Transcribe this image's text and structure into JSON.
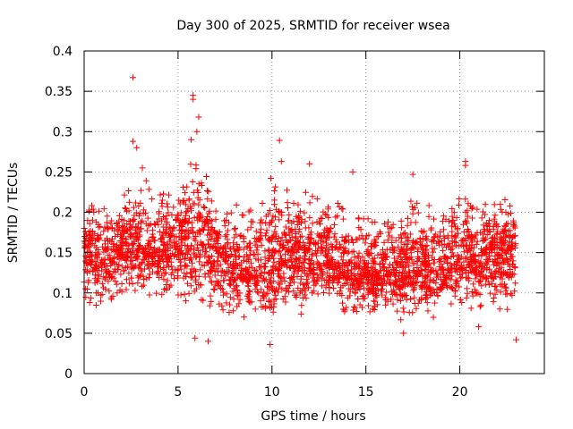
{
  "chart_data": {
    "type": "scatter",
    "title": "Day 300 of 2025, SRMTID for receiver wsea",
    "xlabel": "GPS time / hours",
    "ylabel": "SRMTID / TECUs",
    "xlim": [
      0,
      24.5
    ],
    "ylim": [
      0,
      0.4
    ],
    "xticks": [
      0,
      5,
      10,
      15,
      20
    ],
    "xtick_labels": [
      "0",
      "5",
      "10",
      "15",
      "20"
    ],
    "yticks": [
      0,
      0.05,
      0.1,
      0.15,
      0.2,
      0.25,
      0.3,
      0.35,
      0.4
    ],
    "ytick_labels": [
      "0",
      "0.05",
      "0.1",
      "0.15",
      "0.2",
      "0.25",
      "0.3",
      "0.35",
      "0.4"
    ],
    "grid": true,
    "marker": "+",
    "color": "#ff0000",
    "series": [
      {
        "name": "SRMTID",
        "x_range": [
          0.0,
          23.0
        ],
        "approx_count": 3000,
        "baseline_by_hour": [
          0.15,
          0.14,
          0.15,
          0.16,
          0.15,
          0.16,
          0.17,
          0.15,
          0.13,
          0.13,
          0.14,
          0.15,
          0.14,
          0.14,
          0.13,
          0.12,
          0.13,
          0.13,
          0.13,
          0.13,
          0.14,
          0.14,
          0.15,
          0.15
        ],
        "lower_envelope_by_hour": [
          0.07,
          0.07,
          0.08,
          0.08,
          0.09,
          0.09,
          0.06,
          0.05,
          0.06,
          0.05,
          0.05,
          0.07,
          0.06,
          0.07,
          0.06,
          0.07,
          0.07,
          0.06,
          0.06,
          0.07,
          0.07,
          0.07,
          0.06,
          0.06
        ],
        "upper_envelope_by_hour": [
          0.24,
          0.23,
          0.23,
          0.26,
          0.24,
          0.23,
          0.31,
          0.21,
          0.23,
          0.22,
          0.26,
          0.23,
          0.25,
          0.23,
          0.24,
          0.21,
          0.21,
          0.23,
          0.23,
          0.22,
          0.25,
          0.23,
          0.23,
          0.23
        ],
        "peaks": [
          {
            "x": 2.6,
            "y": 0.367
          },
          {
            "x": 2.6,
            "y": 0.288
          },
          {
            "x": 2.8,
            "y": 0.28
          },
          {
            "x": 3.1,
            "y": 0.255
          },
          {
            "x": 5.8,
            "y": 0.345
          },
          {
            "x": 5.8,
            "y": 0.34
          },
          {
            "x": 6.1,
            "y": 0.318
          },
          {
            "x": 6.0,
            "y": 0.3
          },
          {
            "x": 5.7,
            "y": 0.29
          },
          {
            "x": 10.4,
            "y": 0.289
          },
          {
            "x": 10.5,
            "y": 0.263
          },
          {
            "x": 12.0,
            "y": 0.26
          },
          {
            "x": 14.3,
            "y": 0.25
          },
          {
            "x": 17.5,
            "y": 0.247
          },
          {
            "x": 20.3,
            "y": 0.263
          },
          {
            "x": 20.3,
            "y": 0.258
          }
        ],
        "troughs": [
          {
            "x": 9.9,
            "y": 0.036
          },
          {
            "x": 5.9,
            "y": 0.044
          },
          {
            "x": 6.6,
            "y": 0.04
          },
          {
            "x": 23.0,
            "y": 0.042
          },
          {
            "x": 17.0,
            "y": 0.05
          },
          {
            "x": 21.0,
            "y": 0.058
          }
        ]
      }
    ]
  }
}
